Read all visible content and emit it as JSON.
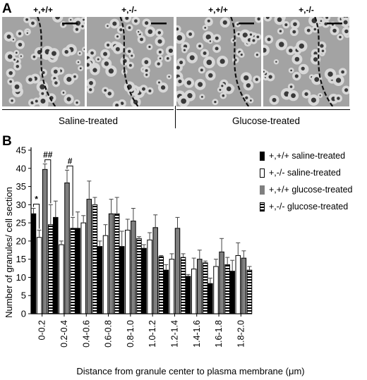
{
  "panel_a": {
    "letter": "A",
    "genotypes": [
      "+,+/+",
      "+,-/-",
      "+,+/+",
      "+,-/-"
    ],
    "groups": [
      "Saline-treated",
      "Glucose-treated"
    ]
  },
  "panel_b": {
    "letter": "B"
  },
  "colors": {
    "wt_saline": "#000000",
    "ko_saline": "#ffffff",
    "wt_glucose": "#7f7f7f",
    "ko_glucose": "striped-black-white"
  },
  "chart_data": {
    "type": "bar",
    "xlabel": "Distance from granule center to plasma membrane (μm)",
    "ylabel": "Number of granules/ cell section",
    "ylim": [
      0,
      45
    ],
    "yticks": [
      0,
      5,
      10,
      15,
      20,
      25,
      30,
      35,
      40,
      45
    ],
    "categories": [
      "0-0.2",
      "0.2-0.4",
      "0.4-0.6",
      "0.6-0.8",
      "0.8-1.0",
      "1.0-1.2",
      "1.2-1.4",
      "1.4-1.6",
      "1.6-1.8",
      "1.8-2.0"
    ],
    "series": [
      {
        "name": "+,+/+ saline-treated",
        "style": "black",
        "values": [
          27.5,
          26.5,
          23.5,
          18.5,
          18.5,
          18,
          12,
          10.3,
          8.3,
          11.7
        ],
        "errors": [
          1.5,
          4.5,
          4.5,
          1.5,
          4.2,
          1.0,
          1.5,
          0.5,
          1.5,
          3.0
        ]
      },
      {
        "name": "+,-/- saline-treated",
        "style": "white",
        "values": [
          21,
          19,
          25,
          21.5,
          23,
          20.3,
          15,
          12.3,
          13,
          16
        ],
        "errors": [
          2.0,
          1.0,
          2.0,
          3.0,
          3.0,
          2.0,
          1.5,
          3.0,
          2.0,
          3.5
        ]
      },
      {
        "name": "+,+/+ glucose-treated",
        "style": "gray",
        "values": [
          39.7,
          36,
          31.5,
          27.5,
          25.5,
          23.7,
          23.5,
          15,
          17,
          15.3
        ],
        "errors": [
          1.5,
          3.5,
          5.0,
          4.0,
          3.5,
          3.5,
          3.0,
          2.5,
          3.7,
          2.0
        ]
      },
      {
        "name": "+,-/- glucose-treated",
        "style": "striped",
        "values": [
          24.5,
          23.5,
          30,
          27.5,
          20.7,
          15.7,
          15.5,
          14,
          13.5,
          12
        ],
        "errors": [
          5.5,
          3.0,
          2.0,
          4.5,
          0.5,
          0.3,
          1.0,
          0.5,
          2.0,
          1.0
        ]
      }
    ],
    "annotations": [
      {
        "text": "*",
        "category": "0-0.2",
        "between": [
          "+,+/+ saline-treated",
          "+,-/- saline-treated"
        ]
      },
      {
        "text": "##",
        "category": "0-0.2",
        "between": [
          "+,+/+ glucose-treated",
          "+,-/- glucose-treated"
        ]
      },
      {
        "text": "#",
        "category": "0.2-0.4",
        "between": [
          "+,+/+ glucose-treated",
          "+,-/- glucose-treated"
        ]
      }
    ],
    "legend_position": "top-right",
    "grid": false
  }
}
